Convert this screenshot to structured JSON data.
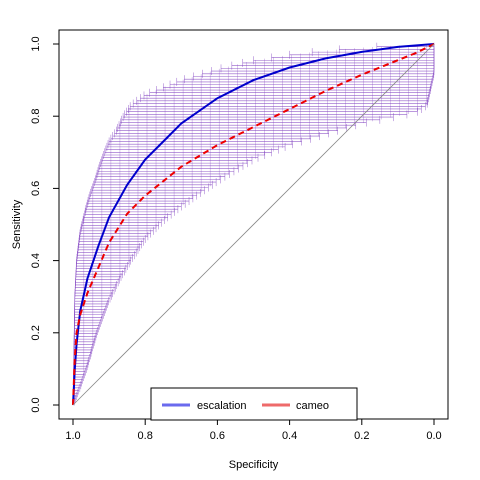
{
  "chart_data": {
    "type": "line",
    "title": "",
    "xlabel": "Specificity",
    "ylabel": "Sensitivity",
    "xlim": [
      1.0,
      0.0
    ],
    "ylim": [
      0.0,
      1.0
    ],
    "x_reversed": true,
    "x_ticks": [
      "1.0",
      "0.8",
      "0.6",
      "0.4",
      "0.2",
      "0.0"
    ],
    "y_ticks": [
      "0.0",
      "0.2",
      "0.4",
      "0.6",
      "0.8",
      "1.0"
    ],
    "grid": false,
    "legend_position": "bottom",
    "reference_line": "diagonal",
    "series": [
      {
        "name": "escalation",
        "color": "#0000cc",
        "style": "solid",
        "points": [
          [
            1.0,
            0.0
          ],
          [
            0.995,
            0.1
          ],
          [
            0.99,
            0.17
          ],
          [
            0.98,
            0.26
          ],
          [
            0.96,
            0.35
          ],
          [
            0.93,
            0.44
          ],
          [
            0.9,
            0.52
          ],
          [
            0.85,
            0.61
          ],
          [
            0.8,
            0.68
          ],
          [
            0.75,
            0.73
          ],
          [
            0.7,
            0.78
          ],
          [
            0.6,
            0.85
          ],
          [
            0.5,
            0.9
          ],
          [
            0.4,
            0.935
          ],
          [
            0.3,
            0.96
          ],
          [
            0.2,
            0.978
          ],
          [
            0.1,
            0.992
          ],
          [
            0.0,
            1.0
          ]
        ]
      },
      {
        "name": "cameo",
        "color": "#ee0000",
        "style": "dashed",
        "points": [
          [
            1.0,
            0.0
          ],
          [
            0.995,
            0.13
          ],
          [
            0.99,
            0.2
          ],
          [
            0.98,
            0.25
          ],
          [
            0.96,
            0.31
          ],
          [
            0.93,
            0.38
          ],
          [
            0.9,
            0.45
          ],
          [
            0.85,
            0.53
          ],
          [
            0.8,
            0.58
          ],
          [
            0.75,
            0.62
          ],
          [
            0.7,
            0.66
          ],
          [
            0.6,
            0.72
          ],
          [
            0.5,
            0.77
          ],
          [
            0.4,
            0.82
          ],
          [
            0.3,
            0.87
          ],
          [
            0.2,
            0.915
          ],
          [
            0.1,
            0.955
          ],
          [
            0.05,
            0.975
          ],
          [
            0.0,
            1.0
          ]
        ]
      }
    ],
    "confidence_band": {
      "color": "#8040c0",
      "upper": [
        [
          1.0,
          0.0
        ],
        [
          0.995,
          0.3
        ],
        [
          0.99,
          0.4
        ],
        [
          0.98,
          0.48
        ],
        [
          0.96,
          0.56
        ],
        [
          0.94,
          0.62
        ],
        [
          0.92,
          0.68
        ],
        [
          0.9,
          0.73
        ],
        [
          0.88,
          0.76
        ],
        [
          0.86,
          0.8
        ],
        [
          0.84,
          0.83
        ],
        [
          0.8,
          0.86
        ],
        [
          0.75,
          0.88
        ],
        [
          0.7,
          0.9
        ],
        [
          0.6,
          0.93
        ],
        [
          0.5,
          0.955
        ],
        [
          0.4,
          0.97
        ],
        [
          0.3,
          0.982
        ],
        [
          0.2,
          0.99
        ],
        [
          0.1,
          0.996
        ],
        [
          0.0,
          1.0
        ]
      ],
      "lower": [
        [
          1.0,
          0.0
        ],
        [
          0.98,
          0.05
        ],
        [
          0.96,
          0.11
        ],
        [
          0.94,
          0.18
        ],
        [
          0.92,
          0.24
        ],
        [
          0.9,
          0.29
        ],
        [
          0.87,
          0.35
        ],
        [
          0.84,
          0.4
        ],
        [
          0.8,
          0.46
        ],
        [
          0.75,
          0.51
        ],
        [
          0.7,
          0.55
        ],
        [
          0.6,
          0.62
        ],
        [
          0.5,
          0.68
        ],
        [
          0.4,
          0.72
        ],
        [
          0.3,
          0.75
        ],
        [
          0.2,
          0.78
        ],
        [
          0.1,
          0.8
        ],
        [
          0.05,
          0.81
        ],
        [
          0.02,
          0.83
        ],
        [
          0.0,
          0.92
        ]
      ]
    }
  }
}
